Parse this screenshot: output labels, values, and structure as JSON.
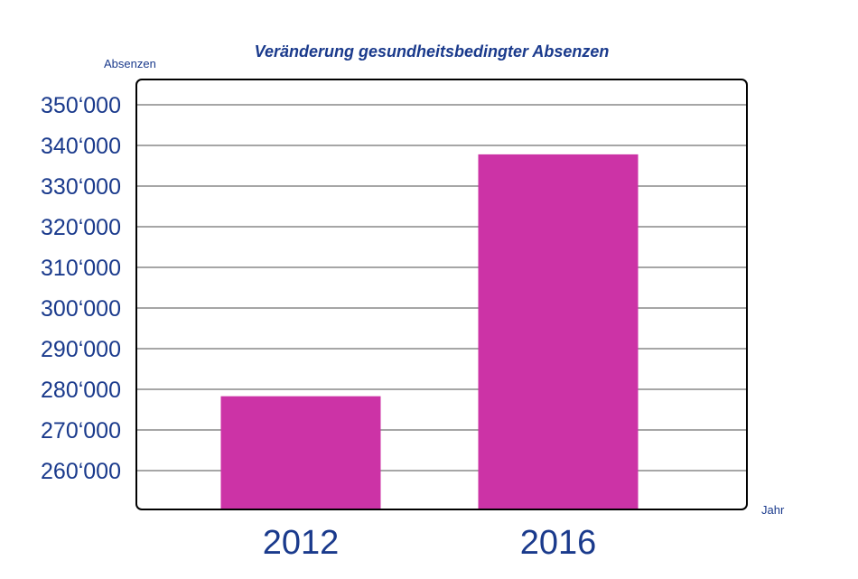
{
  "chart_data": {
    "type": "bar",
    "title": "Veränderung gesundheitsbedingter Absenzen",
    "ylabel": "Absenzen",
    "xlabel": "Jahr",
    "categories": [
      "2012",
      "2016"
    ],
    "values": [
      278300,
      337800
    ],
    "ylim": [
      250000,
      355000
    ],
    "yticks": [
      260000,
      270000,
      280000,
      290000,
      300000,
      310000,
      320000,
      330000,
      340000,
      350000
    ],
    "ytick_labels": [
      "260‘000",
      "270‘000",
      "280‘000",
      "290‘000",
      "300‘000",
      "310‘000",
      "320‘000",
      "330‘000",
      "340‘000",
      "350‘000"
    ],
    "grid": true,
    "legend": "none",
    "colors": {
      "bar": "#cc33a6",
      "text": "#1a3a8c",
      "grid": "#888888",
      "frame": "#000000"
    }
  }
}
